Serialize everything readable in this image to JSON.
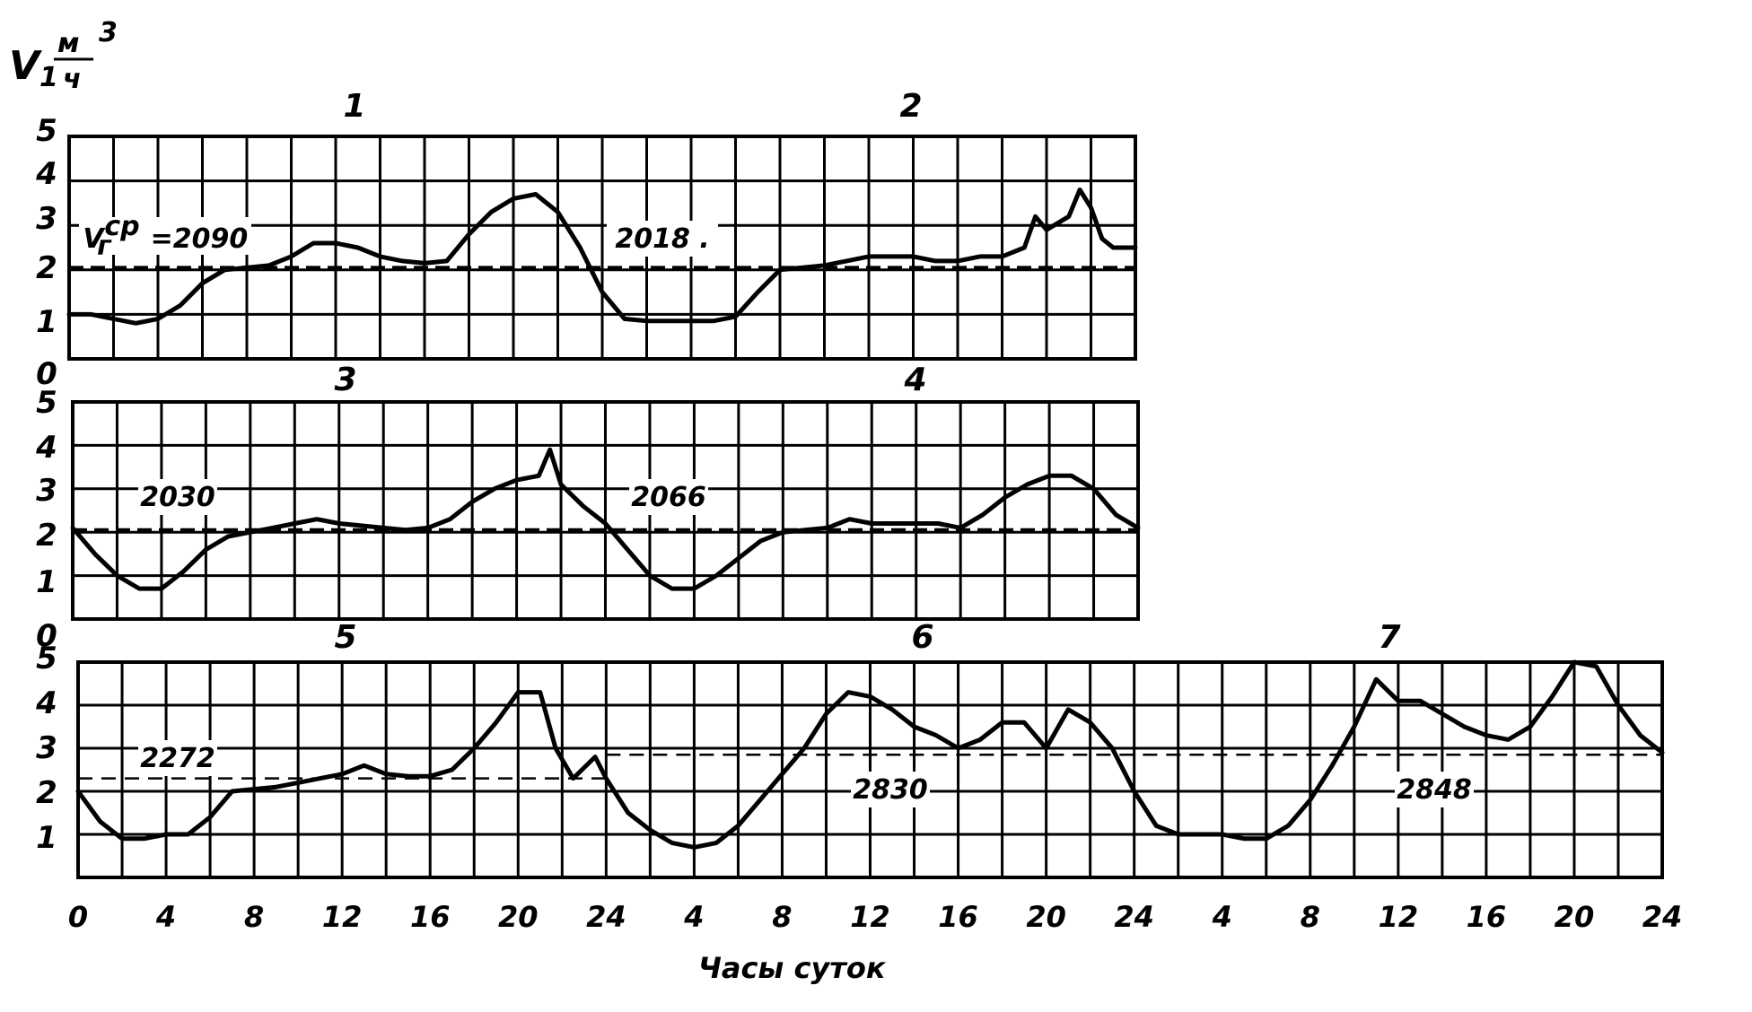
{
  "yaxis": {
    "symbol": "V",
    "sub": "1",
    "unit_num": "м",
    "unit_pow": "3",
    "unit_den": "ч"
  },
  "xlabel": "Часы суток",
  "chart_data": [
    {
      "type": "line",
      "panel": "top",
      "days": [
        "1",
        "2"
      ],
      "ylim": [
        0,
        5
      ],
      "yticks": [
        "0",
        "1",
        "2",
        "3",
        "4",
        "5"
      ],
      "xlim_hours": [
        0,
        48
      ],
      "grid": true,
      "avg_labels": [
        "V",
        "2018 ."
      ],
      "avg_label_1_sub": "г",
      "avg_label_1_sup": "ср",
      "avg_label_1_value": "=2090",
      "average_level": 2.05,
      "series": [
        {
          "x": [
            0,
            1,
            2,
            3,
            4,
            5,
            6,
            7,
            8,
            9,
            10,
            11,
            12,
            13,
            14,
            15,
            16,
            17,
            18,
            19,
            20,
            21,
            22,
            23,
            24,
            25,
            26,
            27,
            28,
            29,
            30,
            31,
            32,
            33,
            34,
            35,
            36,
            37,
            38,
            39,
            40,
            41,
            42,
            43,
            43.5,
            44,
            45,
            45.5,
            46,
            46.5,
            47,
            48
          ],
          "y": [
            1.0,
            1.0,
            0.9,
            0.8,
            0.9,
            1.2,
            1.7,
            2.0,
            2.05,
            2.1,
            2.3,
            2.6,
            2.6,
            2.5,
            2.3,
            2.2,
            2.15,
            2.2,
            2.8,
            3.3,
            3.6,
            3.7,
            3.3,
            2.5,
            1.5,
            0.9,
            0.85,
            0.85,
            0.85,
            0.85,
            0.95,
            1.5,
            2.0,
            2.05,
            2.1,
            2.2,
            2.3,
            2.3,
            2.3,
            2.2,
            2.2,
            2.3,
            2.3,
            2.5,
            3.2,
            2.9,
            3.2,
            3.8,
            3.4,
            2.7,
            2.5,
            2.5
          ]
        }
      ]
    },
    {
      "type": "line",
      "panel": "middle",
      "days": [
        "3",
        "4"
      ],
      "ylim": [
        0,
        5
      ],
      "yticks": [
        "0",
        "1",
        "2",
        "3",
        "4",
        "5"
      ],
      "xlim_hours": [
        0,
        48
      ],
      "grid": true,
      "avg_labels": [
        "2030",
        "2066"
      ],
      "average_level": 2.05,
      "series": [
        {
          "x": [
            0,
            1,
            2,
            3,
            4,
            5,
            6,
            7,
            8,
            9,
            10,
            11,
            12,
            13,
            14,
            15,
            16,
            17,
            18,
            19,
            20,
            21,
            21.5,
            22,
            23,
            24,
            25,
            26,
            27,
            28,
            29,
            30,
            31,
            32,
            33,
            34,
            35,
            36,
            37,
            38,
            39,
            40,
            41,
            42,
            43,
            44,
            45,
            46,
            47,
            48
          ],
          "y": [
            2.1,
            1.5,
            1.0,
            0.7,
            0.7,
            1.1,
            1.6,
            1.9,
            2.0,
            2.1,
            2.2,
            2.3,
            2.2,
            2.15,
            2.1,
            2.05,
            2.1,
            2.3,
            2.7,
            3.0,
            3.2,
            3.3,
            3.9,
            3.1,
            2.6,
            2.2,
            1.6,
            1.0,
            0.7,
            0.7,
            1.0,
            1.4,
            1.8,
            2.0,
            2.05,
            2.1,
            2.3,
            2.2,
            2.2,
            2.2,
            2.2,
            2.1,
            2.4,
            2.8,
            3.1,
            3.3,
            3.3,
            3.0,
            2.4,
            2.1
          ]
        }
      ]
    },
    {
      "type": "line",
      "panel": "bottom",
      "days": [
        "5",
        "6",
        "7"
      ],
      "ylim": [
        0,
        5
      ],
      "yticks": [
        "1",
        "2",
        "3",
        "4",
        "5"
      ],
      "xlim_hours": [
        0,
        72
      ],
      "xticks": [
        "0",
        "4",
        "8",
        "12",
        "16",
        "20",
        "24",
        "4",
        "8",
        "12",
        "16",
        "20",
        "24",
        "4",
        "8",
        "12",
        "16",
        "20",
        "24"
      ],
      "grid": true,
      "avg_labels": [
        "2272",
        "2830",
        "2848"
      ],
      "average_levels": [
        {
          "from": 0,
          "to": 24,
          "level": 2.3
        },
        {
          "from": 24,
          "to": 72,
          "level": 2.85
        }
      ],
      "series": [
        {
          "x": [
            0,
            1,
            2,
            3,
            4,
            5,
            6,
            7,
            8,
            9,
            10,
            11,
            12,
            13,
            14,
            15,
            16,
            17,
            18,
            19,
            20,
            21,
            21.7,
            22.5,
            23.5,
            24,
            25,
            26,
            27,
            28,
            29,
            30,
            31,
            32,
            33,
            34,
            35,
            36,
            37,
            38,
            39,
            40,
            41,
            42,
            43,
            44,
            45,
            46,
            47,
            48,
            49,
            50,
            51,
            52,
            53,
            54,
            55,
            56,
            57,
            58,
            59,
            60,
            61,
            62,
            63,
            64,
            65,
            66,
            67,
            68,
            69,
            70,
            71,
            72
          ],
          "y": [
            2.0,
            1.3,
            0.9,
            0.9,
            1.0,
            1.0,
            1.4,
            2.0,
            2.05,
            2.1,
            2.2,
            2.3,
            2.4,
            2.6,
            2.4,
            2.35,
            2.35,
            2.5,
            3.0,
            3.6,
            4.3,
            4.3,
            3.0,
            2.3,
            2.8,
            2.3,
            1.5,
            1.1,
            0.8,
            0.7,
            0.8,
            1.2,
            1.8,
            2.4,
            3.0,
            3.8,
            4.3,
            4.2,
            3.9,
            3.5,
            3.3,
            3.0,
            3.2,
            3.6,
            3.6,
            3.0,
            3.9,
            3.6,
            3.0,
            2.0,
            1.2,
            1.0,
            1.0,
            1.0,
            0.9,
            0.9,
            1.2,
            1.8,
            2.6,
            3.5,
            4.6,
            4.1,
            4.1,
            3.8,
            3.5,
            3.3,
            3.2,
            3.5,
            4.2,
            5.0,
            4.9,
            4.0,
            3.3,
            2.9
          ]
        }
      ]
    }
  ]
}
